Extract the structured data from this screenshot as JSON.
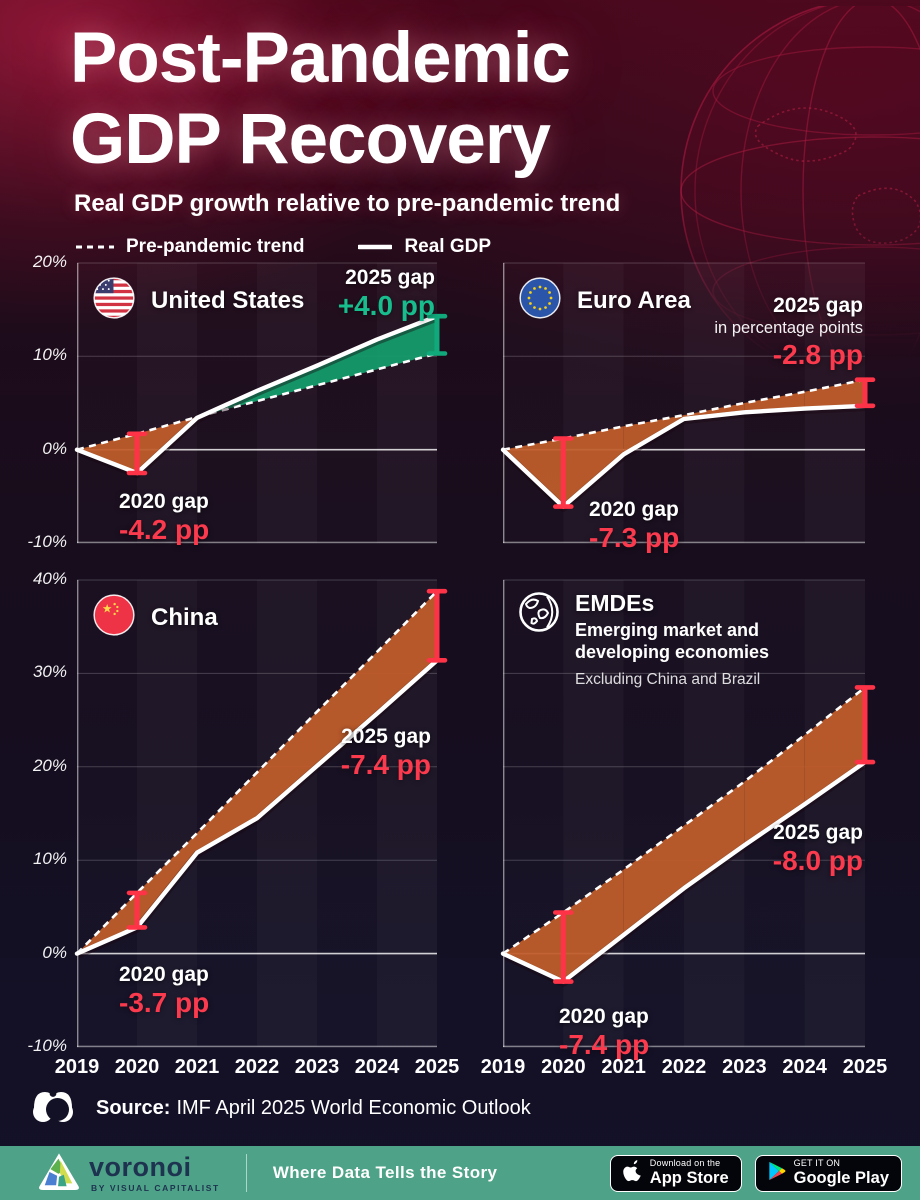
{
  "header": {
    "title_line1": "Post-Pandemic",
    "title_line2": "GDP Recovery",
    "subtitle": "Real GDP growth relative to pre-pandemic trend"
  },
  "legend": {
    "trend_label": "Pre-pandemic trend",
    "real_label": "Real GDP"
  },
  "colors": {
    "deficit_fill": "#bf5c2b",
    "surplus_fill": "#149d6b",
    "negative_text": "#fb3a4e",
    "positive_text": "#17bd8d",
    "error_bar_red": "#ff3347",
    "error_bar_green": "#10a97b",
    "line": "#ffffff",
    "footer_green": "#4ea287"
  },
  "chart_data": [
    {
      "id": "us",
      "type": "area",
      "title": "United States",
      "icon": "us-flag",
      "x": [
        2019,
        2020,
        2021,
        2022,
        2023,
        2024,
        2025
      ],
      "ylim": [
        -10,
        20
      ],
      "yticks": [
        20,
        10,
        0,
        -10
      ],
      "ytick_labels": [
        "20%",
        "10%",
        "0%",
        "-10%"
      ],
      "series": [
        {
          "name": "Pre-pandemic trend",
          "values": [
            0,
            1.7,
            3.5,
            5.2,
            6.9,
            8.6,
            10.3
          ]
        },
        {
          "name": "Real GDP",
          "values": [
            0,
            -2.5,
            3.4,
            6.3,
            9.0,
            11.8,
            14.3
          ]
        }
      ],
      "annotations": {
        "gap2020": {
          "label": "2020 gap",
          "value": "-4.2 pp",
          "positive": false
        },
        "gap2025": {
          "label": "2025 gap",
          "value": "+4.0 pp",
          "positive": true
        }
      }
    },
    {
      "id": "euro",
      "type": "area",
      "title": "Euro Area",
      "icon": "eu-flag",
      "x": [
        2019,
        2020,
        2021,
        2022,
        2023,
        2024,
        2025
      ],
      "ylim": [
        -10,
        20
      ],
      "yticks": [
        20,
        10,
        0,
        -10
      ],
      "ytick_labels": [
        "20%",
        "10%",
        "0%",
        "-10%"
      ],
      "series": [
        {
          "name": "Pre-pandemic trend",
          "values": [
            0,
            1.2,
            2.5,
            3.7,
            5.0,
            6.2,
            7.5
          ]
        },
        {
          "name": "Real GDP",
          "values": [
            0,
            -6.1,
            -0.5,
            3.3,
            4.0,
            4.4,
            4.7
          ]
        }
      ],
      "annotations": {
        "gap2020": {
          "label": "2020 gap",
          "value": "-7.3 pp",
          "positive": false
        },
        "gap2025": {
          "label": "2025 gap",
          "note": "in percentage points",
          "value": "-2.8 pp",
          "positive": false
        }
      }
    },
    {
      "id": "china",
      "type": "area",
      "title": "China",
      "icon": "china-flag",
      "x": [
        2019,
        2020,
        2021,
        2022,
        2023,
        2024,
        2025
      ],
      "ylim": [
        -10,
        40
      ],
      "yticks": [
        40,
        30,
        20,
        10,
        0,
        -10
      ],
      "ytick_labels": [
        "40%",
        "30%",
        "20%",
        "10%",
        "0%",
        "-10%"
      ],
      "series": [
        {
          "name": "Pre-pandemic trend",
          "values": [
            0,
            6.5,
            12.9,
            19.4,
            25.9,
            32.3,
            38.8
          ]
        },
        {
          "name": "Real GDP",
          "values": [
            0,
            2.8,
            10.8,
            14.5,
            20.1,
            25.7,
            31.4
          ]
        }
      ],
      "annotations": {
        "gap2020": {
          "label": "2020 gap",
          "value": "-3.7 pp",
          "positive": false
        },
        "gap2025": {
          "label": "2025 gap",
          "value": "-7.4 pp",
          "positive": false
        }
      }
    },
    {
      "id": "emdes",
      "type": "area",
      "title": "EMDEs",
      "icon": "globe",
      "subtitle_line1": "Emerging market and",
      "subtitle_line2": "developing economies",
      "note": "Excluding China and Brazil",
      "x": [
        2019,
        2020,
        2021,
        2022,
        2023,
        2024,
        2025
      ],
      "ylim": [
        -10,
        40
      ],
      "yticks": [
        40,
        30,
        20,
        10,
        0,
        -10
      ],
      "ytick_labels": [
        "40%",
        "30%",
        "20%",
        "10%",
        "0%",
        "-10%"
      ],
      "series": [
        {
          "name": "Pre-pandemic trend",
          "values": [
            0,
            4.4,
            9.0,
            13.7,
            18.4,
            23.4,
            28.5
          ]
        },
        {
          "name": "Real GDP",
          "values": [
            0,
            -3.0,
            2.0,
            7.0,
            11.6,
            16.0,
            20.5
          ]
        }
      ],
      "annotations": {
        "gap2020": {
          "label": "2020 gap",
          "value": "-7.4 pp",
          "positive": false
        },
        "gap2025": {
          "label": "2025 gap",
          "value": "-8.0 pp",
          "positive": false
        }
      }
    }
  ],
  "xaxis_years": [
    "2019",
    "2020",
    "2021",
    "2022",
    "2023",
    "2024",
    "2025"
  ],
  "source": {
    "label": "Source:",
    "text": "IMF April 2025 World Economic Outlook"
  },
  "footer": {
    "brand": "voronoi",
    "byline": "BY VISUAL CAPITALIST",
    "tagline": "Where Data Tells the Story",
    "appstore_line1": "Download on the",
    "appstore_line2": "App Store",
    "gplay_line1": "GET IT ON",
    "gplay_line2": "Google Play"
  }
}
